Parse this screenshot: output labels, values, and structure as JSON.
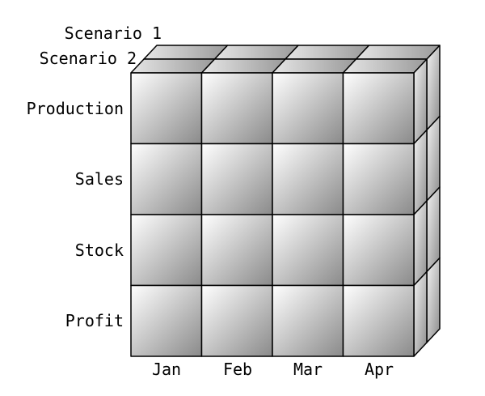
{
  "diagram": {
    "scenarios": [
      "Scenario 1",
      "Scenario 2"
    ],
    "measures": [
      "Production",
      "Sales",
      "Stock",
      "Profit"
    ],
    "months": [
      "Jan",
      "Feb",
      "Mar",
      "Apr"
    ],
    "colors": {
      "front_light": "#ffffff",
      "front_dark": "#8a8a8a",
      "top_light": "#e6e6e6",
      "top_dark": "#9a9a9a",
      "side_light": "#f5f5f5",
      "side_dark": "#8c8c8c",
      "stroke": "#000000"
    }
  }
}
